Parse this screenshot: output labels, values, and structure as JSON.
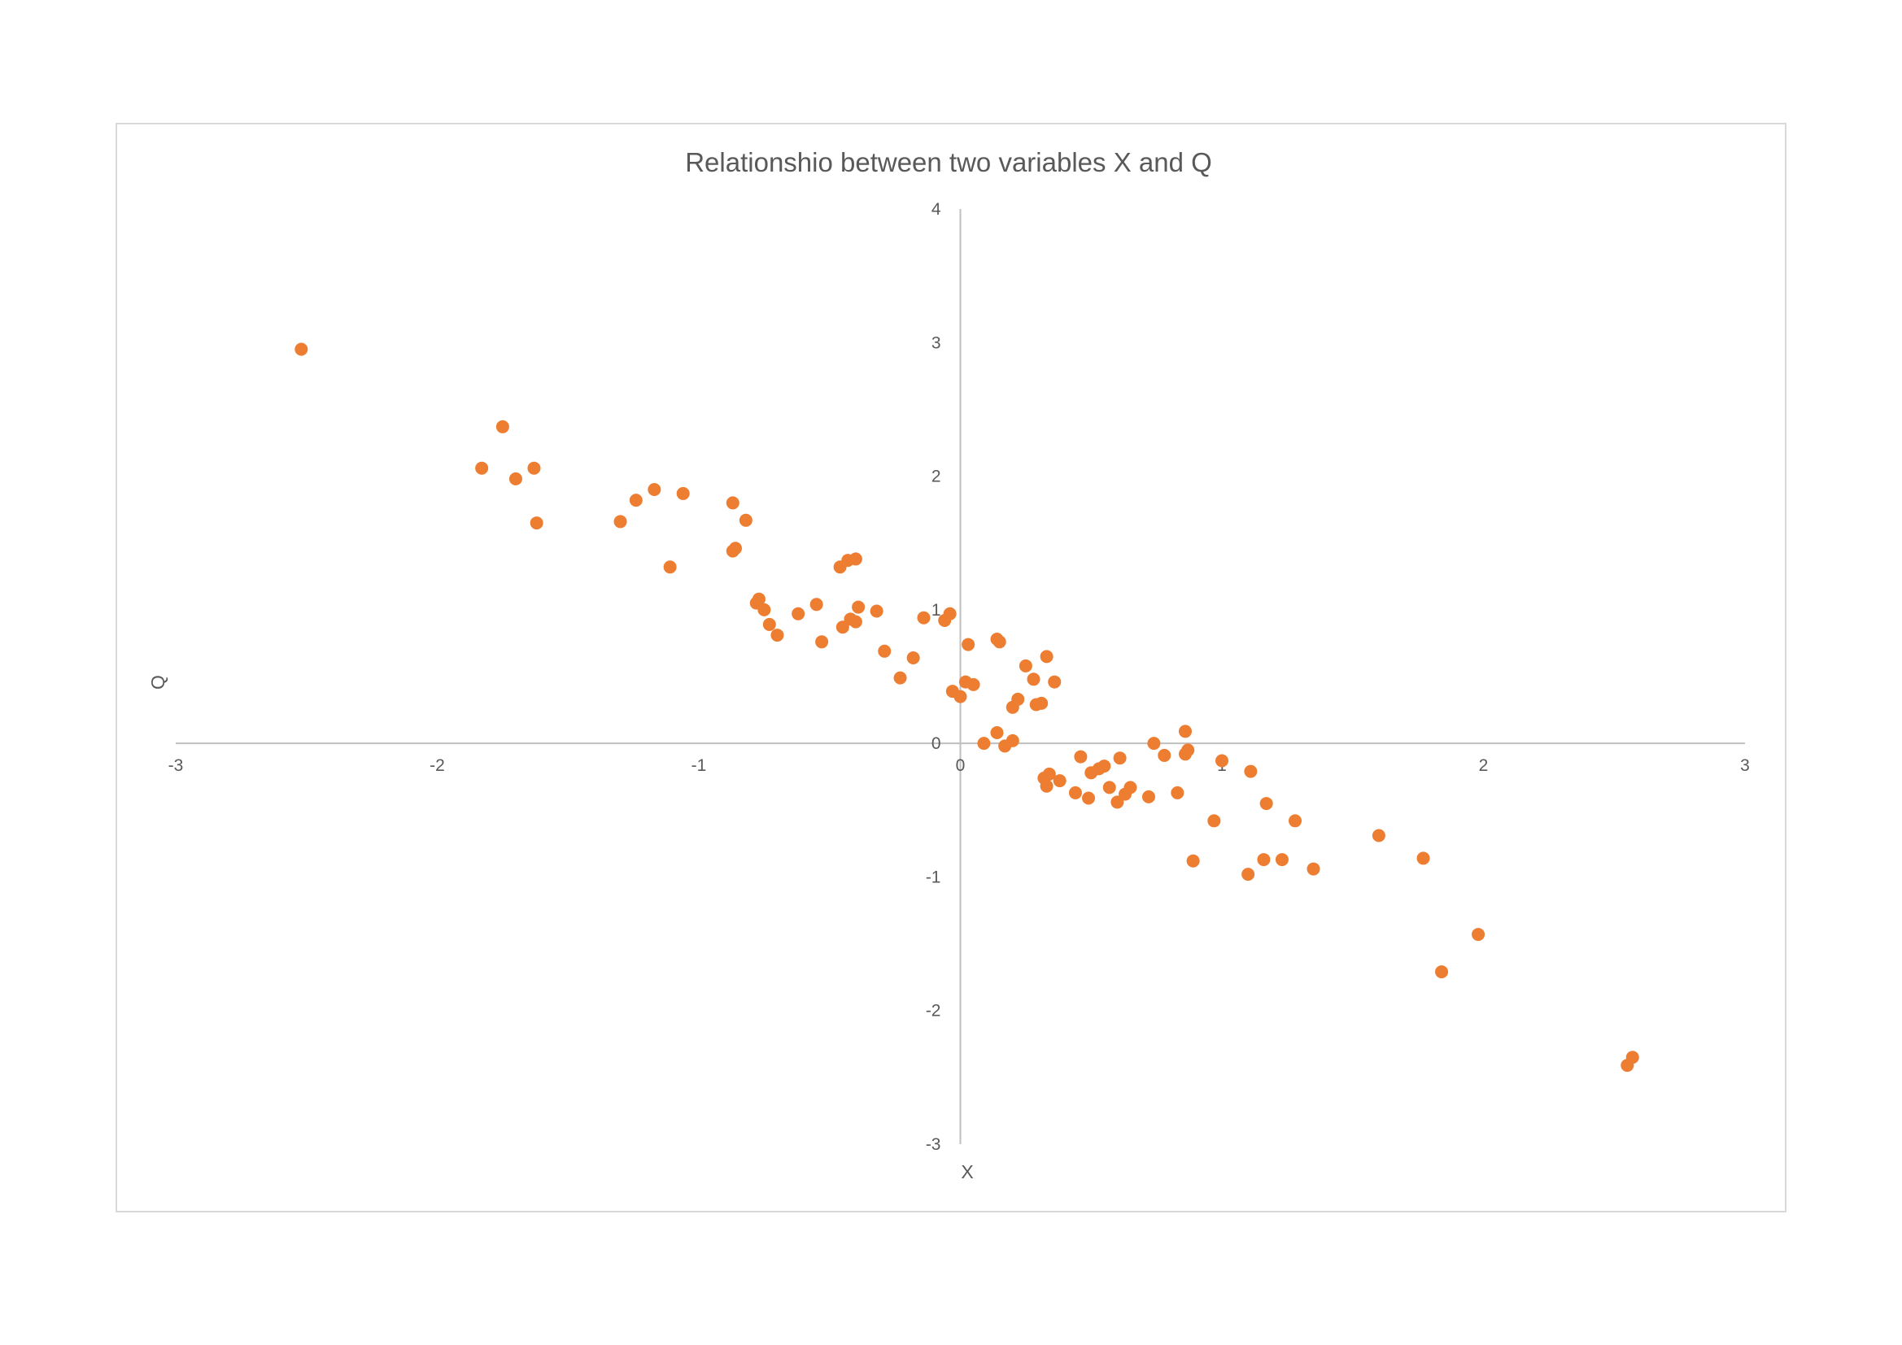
{
  "chart_data": {
    "type": "scatter",
    "title": "Relationshio between two variables X and Q",
    "xlabel": "X",
    "ylabel": "Q",
    "xlim": [
      -3,
      3
    ],
    "ylim": [
      -3,
      4
    ],
    "x_ticks": [
      "-3",
      "-2",
      "-1",
      "0",
      "1",
      "2",
      "3"
    ],
    "y_ticks": [
      "-3",
      "-2",
      "-1",
      "0",
      "1",
      "2",
      "3",
      "4"
    ],
    "grid": false,
    "legend": "none",
    "marker_color": "#ED7D31",
    "axis_color": "#bfbfbf",
    "points": [
      [
        -2.52,
        2.95
      ],
      [
        -1.75,
        2.37
      ],
      [
        -1.83,
        2.06
      ],
      [
        -1.7,
        1.98
      ],
      [
        -1.63,
        2.06
      ],
      [
        -1.62,
        1.65
      ],
      [
        -1.3,
        1.66
      ],
      [
        -1.24,
        1.82
      ],
      [
        -1.17,
        1.9
      ],
      [
        -1.06,
        1.87
      ],
      [
        -1.11,
        1.32
      ],
      [
        -0.87,
        1.8
      ],
      [
        -0.82,
        1.67
      ],
      [
        -0.87,
        1.44
      ],
      [
        -0.86,
        1.46
      ],
      [
        -0.46,
        1.32
      ],
      [
        -0.43,
        1.37
      ],
      [
        -0.4,
        1.38
      ],
      [
        -0.78,
        1.05
      ],
      [
        -0.77,
        1.08
      ],
      [
        -0.75,
        1.0
      ],
      [
        -0.73,
        0.89
      ],
      [
        -0.7,
        0.81
      ],
      [
        -0.62,
        0.97
      ],
      [
        -0.55,
        1.04
      ],
      [
        -0.53,
        0.76
      ],
      [
        -0.45,
        0.87
      ],
      [
        -0.42,
        0.93
      ],
      [
        -0.4,
        0.91
      ],
      [
        -0.39,
        1.02
      ],
      [
        -0.32,
        0.99
      ],
      [
        -0.29,
        0.69
      ],
      [
        -0.23,
        0.49
      ],
      [
        -0.18,
        0.64
      ],
      [
        -0.14,
        0.94
      ],
      [
        -0.06,
        0.92
      ],
      [
        -0.04,
        0.97
      ],
      [
        -0.03,
        0.39
      ],
      [
        0.0,
        0.35
      ],
      [
        0.02,
        0.46
      ],
      [
        0.03,
        0.74
      ],
      [
        0.05,
        0.44
      ],
      [
        0.09,
        0.0
      ],
      [
        0.14,
        0.08
      ],
      [
        0.14,
        0.78
      ],
      [
        0.15,
        0.76
      ],
      [
        0.17,
        -0.02
      ],
      [
        0.2,
        0.02
      ],
      [
        0.2,
        0.27
      ],
      [
        0.22,
        0.33
      ],
      [
        0.25,
        0.58
      ],
      [
        0.28,
        0.48
      ],
      [
        0.29,
        0.29
      ],
      [
        0.31,
        0.3
      ],
      [
        0.33,
        0.65
      ],
      [
        0.36,
        0.46
      ],
      [
        0.32,
        -0.26
      ],
      [
        0.33,
        -0.32
      ],
      [
        0.34,
        -0.23
      ],
      [
        0.38,
        -0.28
      ],
      [
        0.44,
        -0.37
      ],
      [
        0.46,
        -0.1
      ],
      [
        0.49,
        -0.41
      ],
      [
        0.5,
        -0.22
      ],
      [
        0.53,
        -0.19
      ],
      [
        0.55,
        -0.17
      ],
      [
        0.57,
        -0.33
      ],
      [
        0.6,
        -0.44
      ],
      [
        0.61,
        -0.11
      ],
      [
        0.63,
        -0.38
      ],
      [
        0.65,
        -0.33
      ],
      [
        0.72,
        -0.4
      ],
      [
        0.74,
        0.0
      ],
      [
        0.78,
        -0.09
      ],
      [
        0.83,
        -0.37
      ],
      [
        0.86,
        -0.08
      ],
      [
        0.87,
        -0.05
      ],
      [
        0.86,
        0.09
      ],
      [
        0.89,
        -0.88
      ],
      [
        0.97,
        -0.58
      ],
      [
        1.0,
        -0.13
      ],
      [
        1.1,
        -0.98
      ],
      [
        1.11,
        -0.21
      ],
      [
        1.16,
        -0.87
      ],
      [
        1.17,
        -0.45
      ],
      [
        1.23,
        -0.87
      ],
      [
        1.28,
        -0.58
      ],
      [
        1.35,
        -0.94
      ],
      [
        1.6,
        -0.69
      ],
      [
        1.77,
        -0.86
      ],
      [
        1.84,
        -1.71
      ],
      [
        1.98,
        -1.43
      ],
      [
        2.55,
        -2.41
      ],
      [
        2.57,
        -2.35
      ]
    ]
  }
}
